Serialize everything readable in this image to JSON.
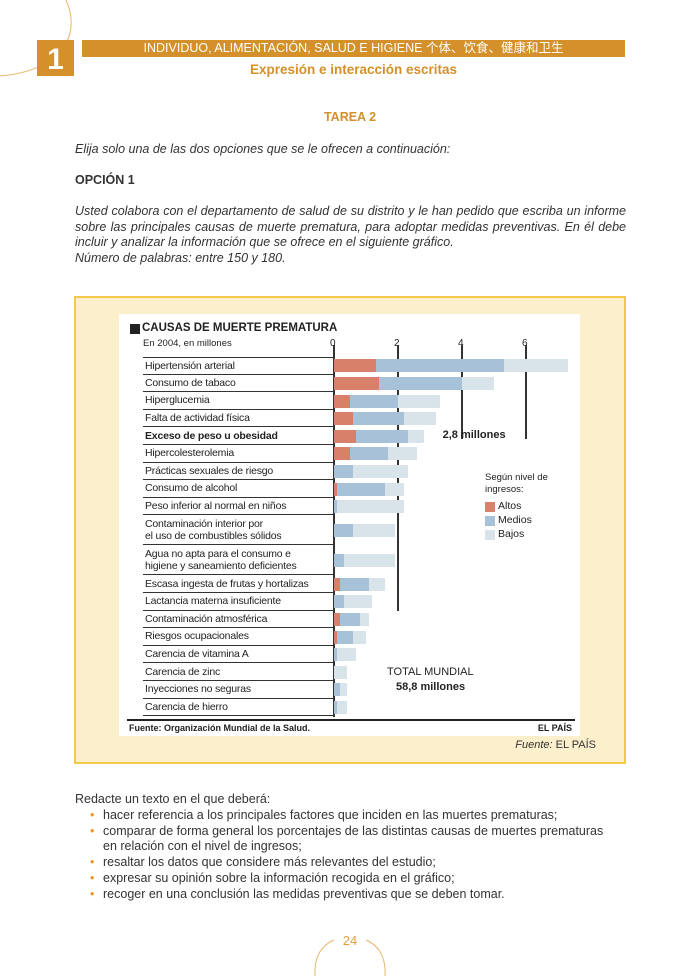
{
  "header": {
    "unit_number": "1",
    "banner": "INDIVIDUO, ALIMENTACIÓN, SALUD E HIGIENE   个体、饮食、健康和卫生",
    "subtitle": "Expresión e interacción escritas"
  },
  "task": {
    "title": "TAREA 2",
    "instruction": "Elija solo una de las dos opciones que se le ofrecen a continuación:",
    "option": "OPCIÓN 1",
    "prompt": "Usted colabora con el departamento de salud de su distrito y le han pedido que escriba un informe sobre las principales causas de muerte prematura, para adoptar medidas preventivas. En él debe incluir y analizar la información que se ofrece en el siguiente gráfico.",
    "word_count": "Número de palabras: entre 150 y 180."
  },
  "figure_source": {
    "label": "Fuente:",
    "value": "EL PAÍS"
  },
  "chart_data": {
    "type": "bar",
    "orientation": "horizontal",
    "stacked": true,
    "title": "CAUSAS DE MUERTE PREMATURA",
    "subtitle": "En 2004, en millones",
    "xlim": [
      0,
      7.5
    ],
    "xticks": [
      "0",
      "2",
      "4",
      "6"
    ],
    "categories": [
      "Hipertensión arterial",
      "Consumo de tabaco",
      "Hiperglucemia",
      "Falta de actividad física",
      "Exceso de peso u obesidad",
      "Hipercolesterolemia",
      "Prácticas sexuales de riesgo",
      "Consumo de alcohol",
      "Peso inferior al normal en niños",
      "Contaminación interior por\nel uso de combustibles sólidos",
      "Agua no apta para el consumo e\nhigiene y saneamiento deficientes",
      "Escasa ingesta de frutas y hortalizas",
      "Lactancia materna insuficiente",
      "Contaminación atmosférica",
      "Riesgos ocupacionales",
      "Carencia de vitamina A",
      "Carencia de zinc",
      "Inyecciones no seguras",
      "Carencia de hierro"
    ],
    "highlighted_category": "Exceso de peso u obesidad",
    "series": [
      {
        "name": "Altos",
        "color": "#d9806a",
        "values": [
          1.3,
          1.4,
          0.5,
          0.6,
          0.7,
          0.5,
          0,
          0.1,
          0,
          0,
          0,
          0.2,
          0,
          0.2,
          0.1,
          0,
          0,
          0,
          0
        ]
      },
      {
        "name": "Medios",
        "color": "#a7c1d8",
        "values": [
          4.0,
          2.6,
          1.5,
          1.6,
          1.6,
          1.2,
          0.6,
          1.5,
          0.1,
          0.6,
          0.3,
          0.9,
          0.3,
          0.6,
          0.5,
          0.1,
          0,
          0.2,
          0.1
        ]
      },
      {
        "name": "Bajos",
        "color": "#d8e4ea",
        "values": [
          2.0,
          1.0,
          1.3,
          1.0,
          0.5,
          0.9,
          1.7,
          0.6,
          2.1,
          1.3,
          1.6,
          0.5,
          0.9,
          0.3,
          0.4,
          0.6,
          0.4,
          0.2,
          0.3
        ]
      }
    ],
    "annotation": "2,8 millones",
    "legend_title": "Según nivel de ingresos:",
    "legend_position": "right",
    "total_label": "TOTAL MUNDIAL",
    "total_value": "58,8 millones",
    "footer_source": "Fuente: Organización Mundial de la Salud.",
    "footer_brand": "EL PAÍS"
  },
  "body": {
    "intro": "Redacte un texto en el que deberá:",
    "bullets": [
      "hacer referencia a los principales factores que inciden en las muertes prematuras;",
      "comparar de forma general los porcentajes de las distintas causas de muertes prematuras en relación con el nivel de ingresos;",
      "resaltar los datos que considere más relevantes del estudio;",
      "expresar su opinión sobre la información recogida en el gráfico;",
      "recoger en una conclusión las medidas preventivas que se deben tomar."
    ],
    "bullet_glyph": "•"
  },
  "page_number": "24"
}
